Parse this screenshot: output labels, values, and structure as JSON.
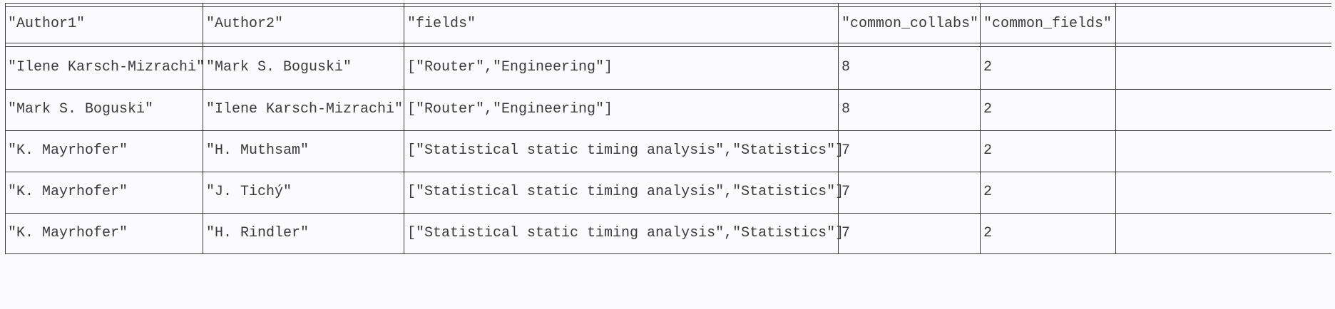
{
  "columns": [
    "\"Author1\"",
    "\"Author2\"",
    "\"fields\"",
    "\"common_collabs\"",
    "\"common_fields\""
  ],
  "rows": [
    [
      "\"Ilene Karsch-Mizrachi\"",
      "\"Mark S. Boguski\"",
      "[\"Router\",\"Engineering\"]",
      "8",
      "2"
    ],
    [
      "\"Mark S. Boguski\"",
      "\"Ilene Karsch-Mizrachi\"",
      "[\"Router\",\"Engineering\"]",
      "8",
      "2"
    ],
    [
      "\"K. Mayrhofer\"",
      "\"H. Muthsam\"",
      "[\"Statistical static timing analysis\",\"Statistics\"]",
      "7",
      "2"
    ],
    [
      "\"K. Mayrhofer\"",
      "\"J. Tichý\"",
      "[\"Statistical static timing analysis\",\"Statistics\"]",
      "7",
      "2"
    ],
    [
      "\"K. Mayrhofer\"",
      "\"H. Rindler\"",
      "[\"Statistical static timing analysis\",\"Statistics\"]",
      "7",
      "2"
    ]
  ]
}
